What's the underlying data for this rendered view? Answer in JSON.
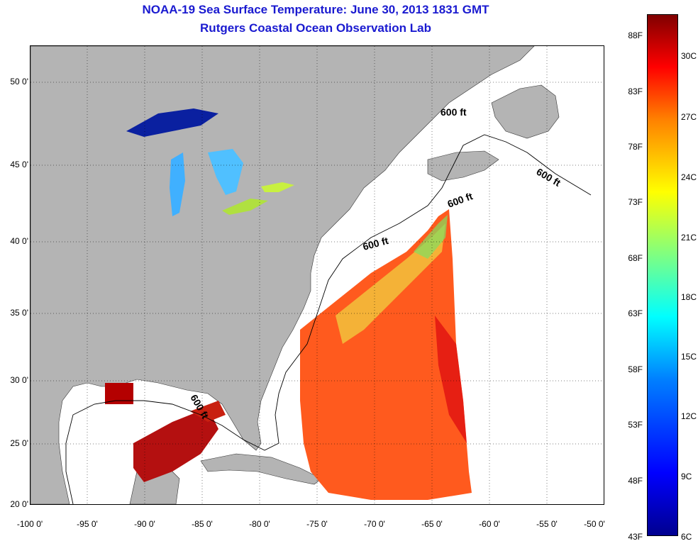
{
  "title": "NOAA-19 Sea Surface Temperature:  June 30, 2013 1831 GMT",
  "subtitle": "Rutgers Coastal Ocean Observation Lab",
  "map": {
    "lat_labels": [
      "50 0'",
      "45 0'",
      "40 0'",
      "35 0'",
      "30 0'",
      "25 0'",
      "20 0'"
    ],
    "lon_labels": [
      "-100 0'",
      "-95 0'",
      "-90 0'",
      "-85 0'",
      "-80 0'",
      "-75 0'",
      "-70 0'",
      "-65 0'",
      "-60 0'",
      "-55 0'",
      "-50 0'"
    ],
    "contour_labels": [
      "600 ft",
      "600 ft",
      "600 ft",
      "600 ft",
      "600 ft"
    ],
    "colors": {
      "land": "#b4b4b4",
      "ocean_no_data": "#ffffff",
      "warm": "#ff5a1e",
      "hot": "#c81414",
      "cool": "#40a0ff",
      "cold": "#0a20a0"
    }
  },
  "colorbar": {
    "fahrenheit": [
      "88F",
      "83F",
      "78F",
      "73F",
      "68F",
      "63F",
      "58F",
      "53F",
      "48F",
      "43F"
    ],
    "celsius": [
      "30C",
      "27C",
      "24C",
      "21C",
      "18C",
      "15C",
      "12C",
      "9C",
      "6C"
    ]
  }
}
